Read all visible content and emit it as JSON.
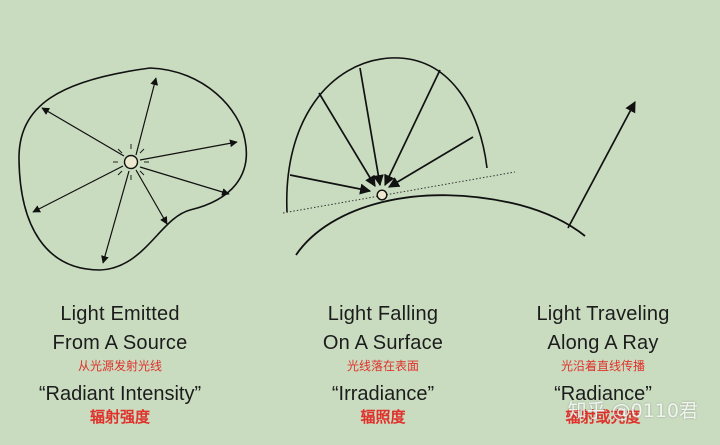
{
  "panels": [
    {
      "title_lines": [
        "Light Emitted",
        "From A Source"
      ],
      "caption_cn": "从光源发射光线",
      "term": "“Radiant Intensity”",
      "term_cn": "辐射强度"
    },
    {
      "title_lines": [
        "Light Falling",
        "On A Surface"
      ],
      "caption_cn": "光线落在表面",
      "term": "“Irradiance”",
      "term_cn": "辐照度"
    },
    {
      "title_lines": [
        "Light Traveling",
        "Along A Ray"
      ],
      "caption_cn": "光沿着直线传播",
      "term": "“Radiance”",
      "term_cn": "辐射或亮度"
    }
  ],
  "watermark": "知乎 @0110君",
  "colors": {
    "background": "#c9dcc0",
    "ink": "#1c1c1c",
    "caption": "#e0312b"
  }
}
